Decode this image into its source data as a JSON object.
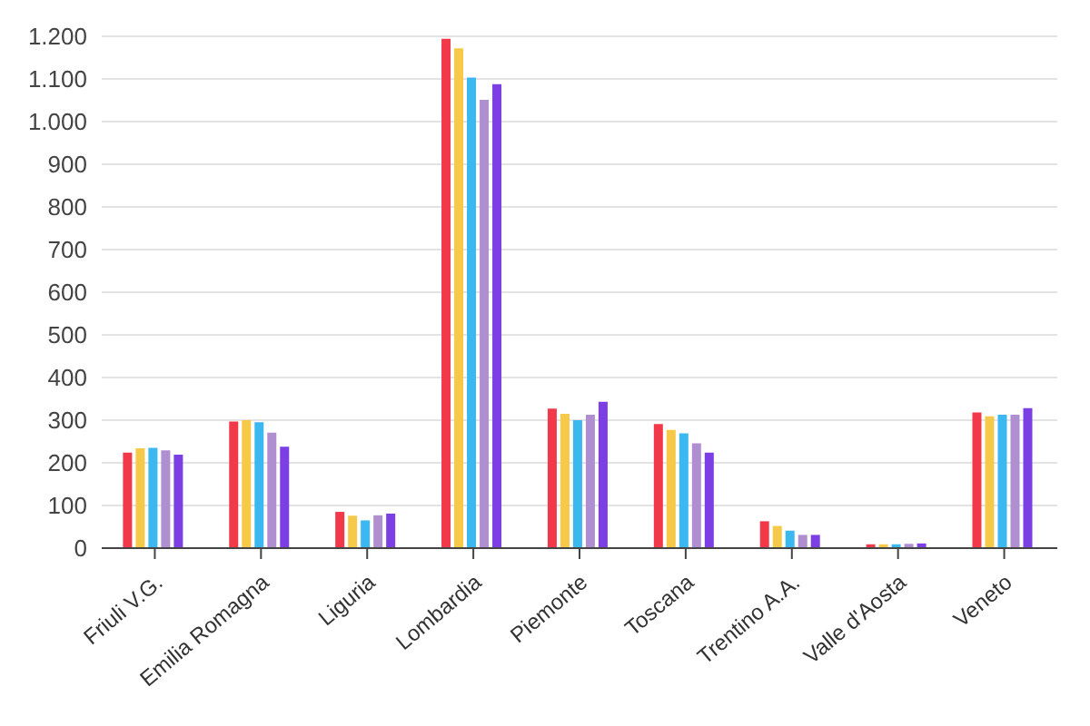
{
  "chart_data": {
    "type": "bar",
    "categories": [
      "Friuli V.G.",
      "Emilia Romagna",
      "Liguria",
      "Lombardia",
      "Piemonte",
      "Toscana",
      "Trentino A.A.",
      "Valle d'Aosta",
      "Veneto"
    ],
    "series": [
      {
        "color": "#f2394a",
        "values": [
          224,
          297,
          85,
          1194,
          327,
          291,
          63,
          9,
          318
        ]
      },
      {
        "color": "#f7c948",
        "values": [
          234,
          300,
          76,
          1172,
          315,
          277,
          52,
          9,
          309
        ]
      },
      {
        "color": "#3bb8ef",
        "values": [
          235,
          295,
          65,
          1103,
          300,
          269,
          41,
          9,
          313
        ]
      },
      {
        "color": "#b08fd0",
        "values": [
          229,
          271,
          77,
          1051,
          313,
          246,
          31,
          10,
          313
        ]
      },
      {
        "color": "#7b3fe4",
        "values": [
          219,
          238,
          81,
          1088,
          343,
          224,
          31,
          11,
          328
        ]
      }
    ],
    "ylim": [
      0,
      1200
    ],
    "yticks": [
      {
        "value": 0,
        "label": "0"
      },
      {
        "value": 100,
        "label": "100"
      },
      {
        "value": 200,
        "label": "200"
      },
      {
        "value": 300,
        "label": "300"
      },
      {
        "value": 400,
        "label": "400"
      },
      {
        "value": 500,
        "label": "500"
      },
      {
        "value": 600,
        "label": "600"
      },
      {
        "value": 700,
        "label": "700"
      },
      {
        "value": 800,
        "label": "800"
      },
      {
        "value": 900,
        "label": "900"
      },
      {
        "value": 1000,
        "label": "1.000"
      },
      {
        "value": 1100,
        "label": "1.100"
      },
      {
        "value": 1200,
        "label": "1.200"
      }
    ],
    "grid": "y",
    "legend": false
  }
}
